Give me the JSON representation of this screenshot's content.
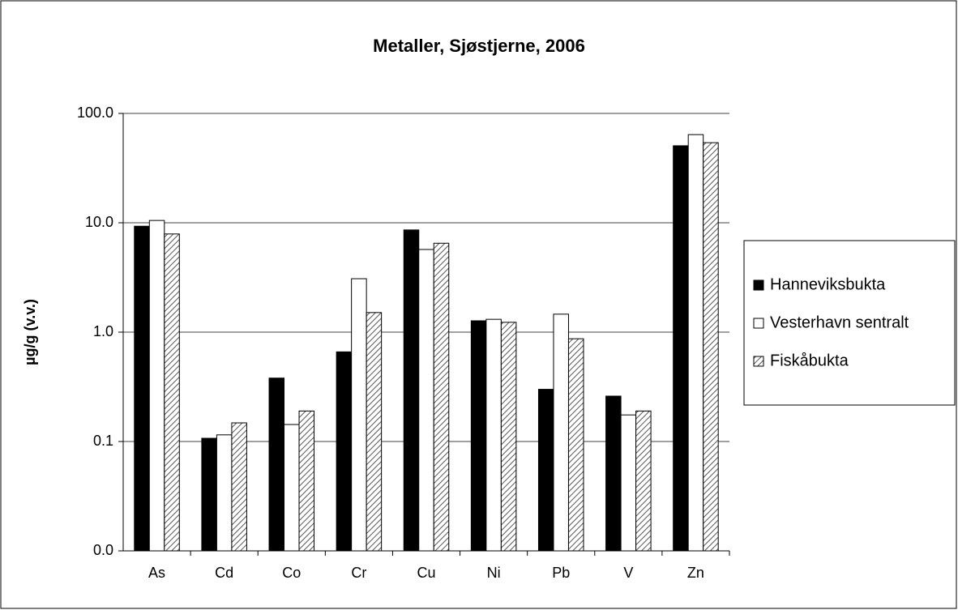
{
  "chart_data": {
    "type": "bar",
    "title": "Metaller, Sjøstjerne, 2006",
    "y_label": "µg/g (v.v.)",
    "categories": [
      "As",
      "Cd",
      "Co",
      "Cr",
      "Cu",
      "Ni",
      "Pb",
      "V",
      "Zn"
    ],
    "series": [
      {
        "name": "Hanneviksbukta",
        "color": "#000000",
        "values": [
          9.3,
          0.107,
          0.38,
          0.66,
          8.6,
          1.27,
          0.3,
          0.26,
          50.6
        ]
      },
      {
        "name": "Vesterhavn sentralt",
        "color": "#ffffff",
        "values": [
          10.5,
          0.115,
          0.143,
          3.08,
          5.7,
          1.31,
          1.46,
          0.175,
          64
        ]
      },
      {
        "name": "Fiskåbukta",
        "color": "#808080",
        "pattern": "hatch",
        "values": [
          7.9,
          0.148,
          0.19,
          1.51,
          6.5,
          1.23,
          0.87,
          0.19,
          54
        ]
      }
    ],
    "log_scale": true,
    "ylim": [
      0.01,
      100
    ],
    "yticks": [
      {
        "value": 0.01,
        "label": "0.0"
      },
      0.1,
      {
        "value": 1,
        "label": "1.0"
      },
      {
        "value": 10,
        "label": "10.0"
      },
      {
        "value": 100,
        "label": "100.0"
      }
    ],
    "grid": true,
    "legend": "right"
  }
}
